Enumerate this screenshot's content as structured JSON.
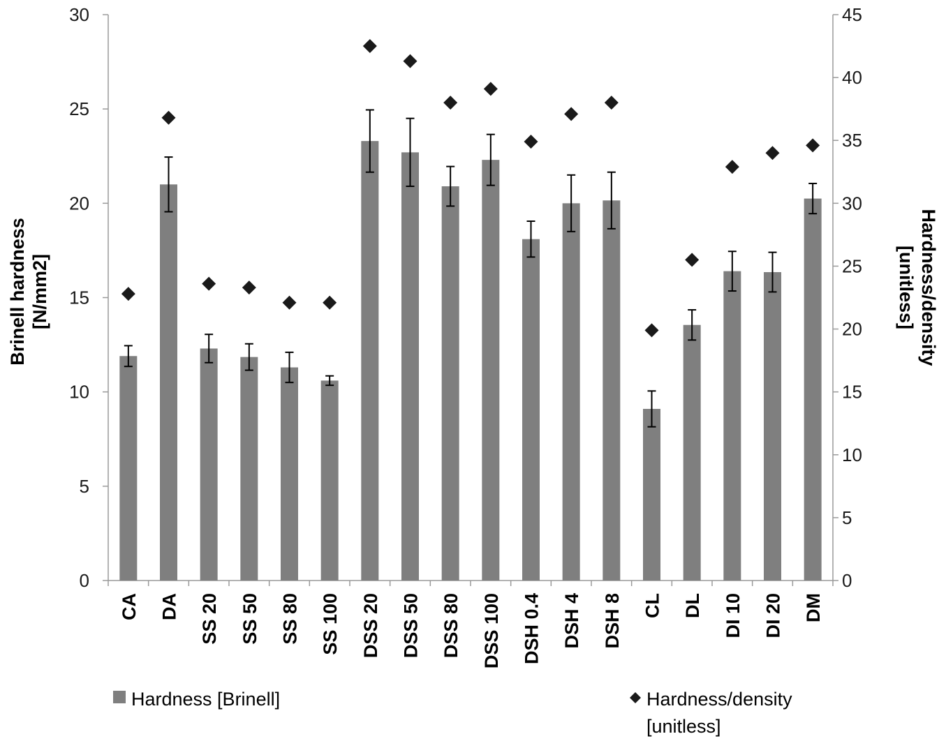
{
  "chart_data": {
    "type": "bar",
    "categories": [
      "CA",
      "DA",
      "SS 20",
      "SS 50",
      "SS 80",
      "SS 100",
      "DSS 20",
      "DSS 50",
      "DSS 80",
      "DSS 100",
      "DSH 0.4",
      "DSH 4",
      "DSH 8",
      "CL",
      "DL",
      "DI 10",
      "DI 20",
      "DM"
    ],
    "series": [
      {
        "name": "Hardness [Brinell]",
        "axis": "left",
        "mark": "bar",
        "color": "#7f7f7f",
        "values": [
          11.9,
          21.0,
          12.3,
          11.85,
          11.3,
          10.6,
          23.3,
          22.7,
          20.9,
          22.3,
          18.1,
          20.0,
          20.15,
          9.1,
          13.55,
          16.4,
          16.35,
          20.25
        ],
        "error": [
          0.55,
          1.45,
          0.75,
          0.7,
          0.8,
          0.25,
          1.65,
          1.8,
          1.05,
          1.35,
          0.95,
          1.5,
          1.5,
          0.95,
          0.8,
          1.05,
          1.05,
          0.8
        ]
      },
      {
        "name": "Hardness/density [unitless]",
        "axis": "right",
        "mark": "diamond",
        "color": "#1a1a1a",
        "values": [
          22.8,
          36.8,
          23.6,
          23.3,
          22.1,
          22.1,
          42.5,
          41.3,
          38.0,
          39.1,
          34.9,
          37.1,
          38.0,
          19.9,
          25.5,
          32.9,
          34.0,
          34.6
        ]
      }
    ],
    "ylabel": "Brinell hardness [N/mm2]",
    "ylabel_lines": [
      "Brinell hardness",
      "[N/mm2]"
    ],
    "y2label": "Hardness/density [unitless]",
    "y2label_lines": [
      "Hardness/density",
      "[unitless]"
    ],
    "ylim": [
      0,
      30
    ],
    "y2lim": [
      0,
      45
    ],
    "yticks": [
      0,
      5,
      10,
      15,
      20,
      25,
      30
    ],
    "y2ticks": [
      0,
      5,
      10,
      15,
      20,
      25,
      30,
      35,
      40,
      45
    ],
    "grid": false,
    "legend": "bottom"
  }
}
